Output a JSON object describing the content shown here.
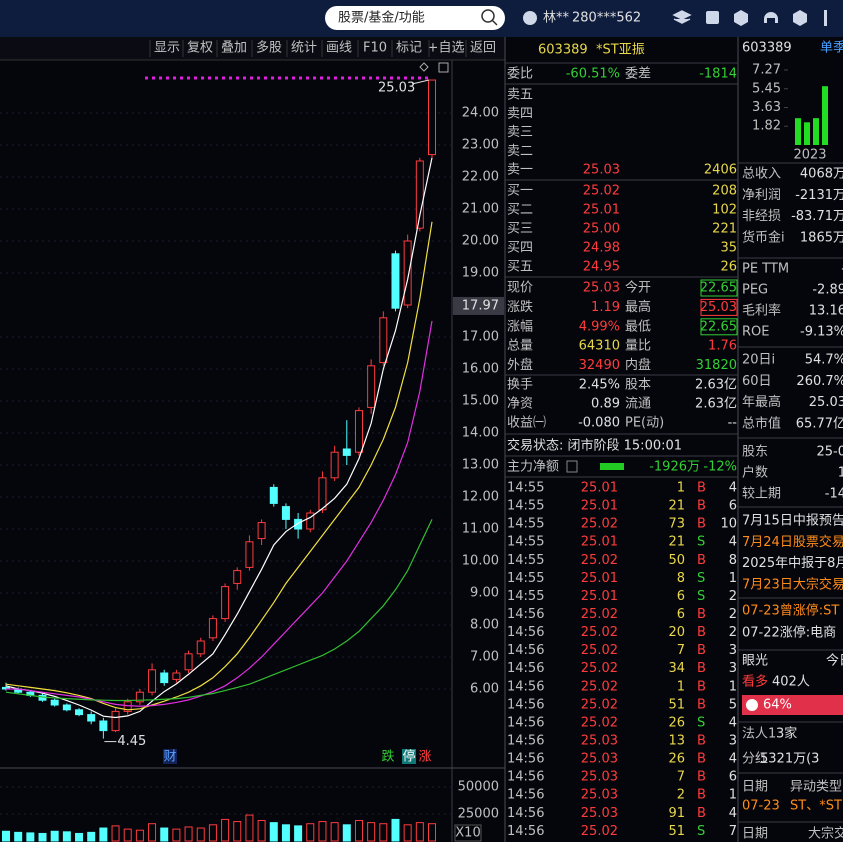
{
  "topbar": {
    "search": "股票/基金/功能",
    "user": "林**",
    "account": "280***562"
  },
  "toolbar": [
    "显示",
    "复权",
    "叠加",
    "多股",
    "统计",
    "画线",
    "F10",
    "标记",
    "+自选",
    "返回"
  ],
  "chart_data": [
    {
      "type": "candlestick",
      "categories": [
        null,
        null,
        null,
        null,
        null,
        null,
        null,
        null,
        null,
        null,
        null,
        null,
        null,
        null,
        null,
        null,
        null,
        null,
        null,
        null,
        null,
        null,
        null,
        null,
        null,
        null,
        null,
        null,
        null,
        null,
        null,
        null,
        null,
        null,
        null,
        null
      ],
      "open": [
        6.05,
        6.0,
        5.9,
        5.8,
        5.65,
        5.5,
        5.35,
        5.2,
        5.0,
        4.7,
        5.3,
        5.6,
        5.9,
        6.5,
        6.3,
        6.6,
        7.1,
        7.6,
        8.2,
        9.3,
        9.8,
        10.7,
        12.3,
        11.7,
        11.3,
        11.0,
        11.6,
        12.6,
        13.5,
        13.4,
        14.8,
        16.2,
        19.6,
        18.0,
        20.4,
        22.7
      ],
      "high": [
        6.2,
        6.05,
        5.95,
        5.85,
        5.7,
        5.55,
        5.4,
        5.3,
        5.1,
        5.4,
        5.7,
        6.0,
        6.8,
        6.6,
        6.6,
        7.2,
        7.6,
        8.3,
        9.3,
        9.8,
        10.8,
        11.3,
        12.4,
        11.8,
        11.5,
        11.6,
        12.8,
        13.6,
        14.4,
        14.8,
        16.3,
        17.8,
        19.7,
        20.2,
        22.6,
        25.03
      ],
      "low": [
        5.95,
        5.85,
        5.75,
        5.6,
        5.45,
        5.3,
        5.15,
        4.9,
        4.45,
        4.65,
        5.2,
        5.5,
        5.8,
        6.1,
        6.2,
        6.5,
        7.0,
        7.5,
        8.1,
        9.1,
        9.7,
        10.5,
        11.7,
        11.0,
        10.7,
        10.9,
        11.5,
        12.5,
        13.0,
        13.3,
        14.6,
        16.1,
        17.8,
        17.9,
        20.3,
        22.6
      ],
      "close": [
        6.0,
        5.9,
        5.8,
        5.65,
        5.5,
        5.35,
        5.2,
        5.0,
        4.7,
        5.3,
        5.6,
        5.9,
        6.6,
        6.2,
        6.5,
        7.1,
        7.5,
        8.2,
        9.2,
        9.7,
        10.6,
        11.2,
        11.8,
        11.3,
        11.0,
        11.5,
        12.6,
        13.4,
        13.3,
        14.7,
        16.1,
        17.6,
        17.9,
        20.0,
        22.5,
        25.03
      ],
      "ma": [
        {
          "color": "#ffffff",
          "values": [
            6.1,
            6.0,
            5.95,
            5.87,
            5.77,
            5.64,
            5.5,
            5.34,
            5.15,
            5.11,
            5.16,
            5.3,
            5.62,
            5.92,
            6.16,
            6.46,
            6.78,
            7.1,
            7.7,
            8.34,
            9.04,
            9.74,
            10.5,
            10.92,
            11.18,
            11.36,
            11.64,
            11.96,
            12.4,
            13.2,
            14.3,
            16.0,
            17.2,
            18.8,
            20.8,
            22.6
          ]
        },
        {
          "color": "#f0e040",
          "values": [
            6.15,
            6.1,
            6.05,
            6.0,
            5.95,
            5.88,
            5.8,
            5.7,
            5.55,
            5.42,
            5.35,
            5.38,
            5.5,
            5.62,
            5.75,
            5.9,
            6.1,
            6.35,
            6.7,
            7.1,
            7.6,
            8.15,
            8.7,
            9.3,
            9.8,
            10.3,
            10.8,
            11.3,
            11.8,
            12.3,
            13.0,
            13.8,
            14.8,
            16.2,
            18.2,
            20.6
          ]
        },
        {
          "color": "#e030e0",
          "values": [
            6.0,
            6.0,
            5.95,
            5.9,
            5.85,
            5.8,
            5.75,
            5.68,
            5.6,
            5.52,
            5.48,
            5.46,
            5.48,
            5.52,
            5.58,
            5.66,
            5.78,
            5.92,
            6.1,
            6.35,
            6.65,
            7.0,
            7.4,
            7.8,
            8.2,
            8.6,
            9.0,
            9.5,
            10.0,
            10.6,
            11.2,
            11.9,
            12.7,
            13.7,
            15.3,
            17.5
          ]
        },
        {
          "color": "#30c030",
          "values": [
            5.9,
            5.85,
            5.8,
            5.75,
            5.72,
            5.7,
            5.68,
            5.66,
            5.65,
            5.64,
            5.64,
            5.65,
            5.66,
            5.68,
            5.7,
            5.74,
            5.8,
            5.86,
            5.95,
            6.05,
            6.15,
            6.3,
            6.45,
            6.6,
            6.75,
            6.9,
            7.05,
            7.25,
            7.5,
            7.8,
            8.2,
            8.6,
            9.1,
            9.7,
            10.5,
            11.3
          ]
        }
      ],
      "up_color": "#ff3c3c",
      "down_color": "#54ffff",
      "ylim": [
        3.625,
        25.656
      ],
      "yticks": [
        {
          "value": 24,
          "label": "24.00"
        },
        {
          "value": 23,
          "label": "23.00"
        },
        {
          "value": 22,
          "label": "22.00"
        },
        {
          "value": 21,
          "label": "21.00"
        },
        {
          "value": 20,
          "label": "20.00"
        },
        {
          "value": 19,
          "label": "19.00"
        },
        {
          "value": 17,
          "label": "17.00"
        },
        {
          "value": 16,
          "label": "16.00"
        },
        {
          "value": 15,
          "label": "15.00"
        },
        {
          "value": 14,
          "label": "14.00"
        },
        {
          "value": 13,
          "label": "13.00"
        },
        {
          "value": 12,
          "label": "12.00"
        },
        {
          "value": 11,
          "label": "11.00"
        },
        {
          "value": 10,
          "label": "10.00"
        },
        {
          "value": 9,
          "label": "9.00"
        },
        {
          "value": 8,
          "label": "8.00"
        },
        {
          "value": 7,
          "label": "7.00"
        },
        {
          "value": 6,
          "label": "6.00"
        }
      ],
      "grid": true,
      "cursor_price": 17.97,
      "high_label": 25.03,
      "low_label": 4.45,
      "markers": [
        "财",
        "跌",
        "停",
        "涨"
      ],
      "volume": [
        9000,
        8000,
        7500,
        7000,
        9000,
        8500,
        7000,
        8000,
        12000,
        14000,
        11000,
        10000,
        16000,
        12000,
        11000,
        13000,
        12000,
        15000,
        20000,
        18000,
        24000,
        19000,
        17000,
        15000,
        14000,
        16000,
        18000,
        17000,
        15000,
        19000,
        17000,
        16000,
        20000,
        15000,
        17000,
        16000
      ],
      "volume_ylim": [
        0,
        61100
      ],
      "volume_yticks": [
        50000,
        25000
      ],
      "volume_unit": "X10"
    },
    {
      "type": "bar",
      "values": [
        2.6,
        2.2,
        2.6,
        5.7
      ],
      "color": "#22dd22",
      "ylim": [
        0,
        7.27
      ],
      "yticks": [
        7.27,
        5.45,
        3.63,
        1.82
      ],
      "x_label": "2023"
    }
  ],
  "quote": {
    "code": "603389",
    "name": "*ST亚振",
    "wtb": [
      "委比",
      "-60.51%",
      "委差",
      "-1814"
    ],
    "asks": [
      [
        "卖五"
      ],
      [
        "卖四"
      ],
      [
        "卖三"
      ],
      [
        "卖二"
      ],
      [
        "卖一",
        "25.03",
        "2406"
      ]
    ],
    "bids": [
      [
        "买一",
        "25.02",
        "208"
      ],
      [
        "买二",
        "25.01",
        "102"
      ],
      [
        "买三",
        "25.00",
        "221"
      ],
      [
        "买四",
        "24.98",
        "35"
      ],
      [
        "买五",
        "24.95",
        "26"
      ]
    ],
    "stats": [
      [
        "现价",
        "25.03",
        "今开",
        "22.65"
      ],
      [
        "涨跌",
        "1.19",
        "最高",
        "25.03"
      ],
      [
        "涨幅",
        "4.99%",
        "最低",
        "22.65"
      ],
      [
        "总量",
        "64310",
        "量比",
        "1.76"
      ],
      [
        "外盘",
        "32490",
        "内盘",
        "31820"
      ],
      [
        "换手",
        "2.45%",
        "股本",
        "2.63亿"
      ],
      [
        "净资",
        "0.89",
        "流通",
        "2.63亿"
      ],
      [
        "收益㈠",
        "-0.080",
        "PE(动)",
        "--"
      ]
    ],
    "status": "交易状态: 闭市阶段 15:00:01",
    "flow": [
      "主力净额",
      "-1926万",
      "-12%"
    ],
    "ticks": [
      [
        "14:55",
        "25.01",
        "1",
        "B",
        "4"
      ],
      [
        "14:55",
        "25.01",
        "21",
        "B",
        "6"
      ],
      [
        "14:55",
        "25.02",
        "73",
        "B",
        "10"
      ],
      [
        "14:55",
        "25.01",
        "21",
        "S",
        "4"
      ],
      [
        "14:55",
        "25.02",
        "50",
        "B",
        "8"
      ],
      [
        "14:55",
        "25.01",
        "8",
        "S",
        "1"
      ],
      [
        "14:55",
        "25.01",
        "6",
        "S",
        "2"
      ],
      [
        "14:56",
        "25.02",
        "6",
        "B",
        "2"
      ],
      [
        "14:56",
        "25.02",
        "20",
        "B",
        "2"
      ],
      [
        "14:56",
        "25.02",
        "7",
        "B",
        "3"
      ],
      [
        "14:56",
        "25.02",
        "34",
        "B",
        "3"
      ],
      [
        "14:56",
        "25.02",
        "1",
        "B",
        "1"
      ],
      [
        "14:56",
        "25.02",
        "51",
        "B",
        "5"
      ],
      [
        "14:56",
        "25.02",
        "26",
        "S",
        "4"
      ],
      [
        "14:56",
        "25.03",
        "13",
        "B",
        "3"
      ],
      [
        "14:56",
        "25.03",
        "26",
        "B",
        "4"
      ],
      [
        "14:56",
        "25.03",
        "7",
        "B",
        "6"
      ],
      [
        "14:56",
        "25.03",
        "2",
        "B",
        "1"
      ],
      [
        "14:56",
        "25.03",
        "91",
        "B",
        "4"
      ],
      [
        "14:56",
        "25.02",
        "51",
        "S",
        "7"
      ]
    ]
  },
  "side": {
    "code": "603389",
    "tab": "单季",
    "fin": [
      [
        "总收入",
        "4068万"
      ],
      [
        "净利润",
        "-2131万"
      ],
      [
        "非经损",
        "-83.71万"
      ],
      [
        "货币金i",
        "1865万"
      ]
    ],
    "valuation": [
      [
        "PE TTM",
        "-"
      ],
      [
        "PEG",
        "-2.89"
      ],
      [
        "毛利率",
        "13.16"
      ],
      [
        "ROE",
        "-9.13%"
      ]
    ],
    "perf": [
      [
        "20日i",
        "54.7%"
      ],
      [
        "60日",
        "260.7%"
      ],
      [
        "年最高",
        "25.03"
      ],
      [
        "总市值",
        "65.77亿"
      ]
    ],
    "holders": [
      [
        "股东",
        "25-0"
      ],
      [
        "户数",
        "1"
      ],
      [
        "较上期",
        "-14"
      ]
    ],
    "news": [
      "7月15日中报预告",
      "7月24日股票交易",
      "2025年中报于8月",
      "7月23日大宗交易"
    ],
    "limits": [
      "07-23曾涨停:ST",
      "07-22涨停:电商"
    ],
    "view": {
      "label": "眼光",
      "tab": "今日",
      "bull": "看多",
      "count": "402人",
      "pct": "64%"
    },
    "legal": [
      "法人1",
      "3家"
    ],
    "dividend": [
      "分红",
      "5321万(3"
    ],
    "table": [
      [
        "日期",
        "异动类型"
      ],
      [
        "07-23",
        "ST、*ST"
      ],
      [
        "日期",
        "大宗交"
      ]
    ]
  }
}
